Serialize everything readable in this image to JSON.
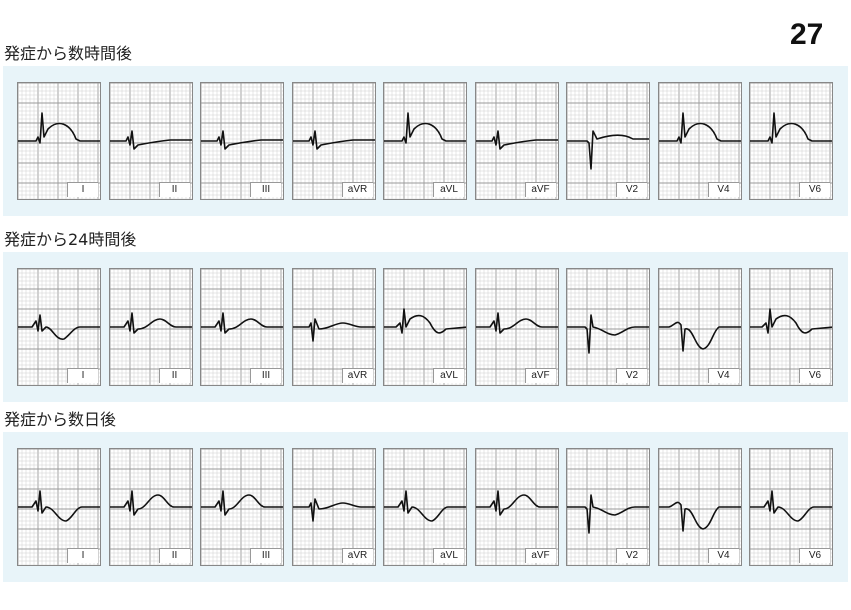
{
  "page_number": "27",
  "sections": [
    {
      "title": "発症から数時間後",
      "leads": [
        {
          "label": "I",
          "shape": "st_elev"
        },
        {
          "label": "II",
          "shape": "st_dep"
        },
        {
          "label": "III",
          "shape": "st_dep"
        },
        {
          "label": "aVR",
          "shape": "st_dep"
        },
        {
          "label": "aVL",
          "shape": "st_elev"
        },
        {
          "label": "aVF",
          "shape": "st_dep"
        },
        {
          "label": "V2",
          "shape": "qs_up"
        },
        {
          "label": "V4",
          "shape": "st_elev"
        },
        {
          "label": "V6",
          "shape": "st_elev"
        }
      ]
    },
    {
      "title": "発症から24時間後",
      "leads": [
        {
          "label": "I",
          "shape": "t_inv_small"
        },
        {
          "label": "II",
          "shape": "t_up_small"
        },
        {
          "label": "III",
          "shape": "t_up_small"
        },
        {
          "label": "aVR",
          "shape": "q_small_t"
        },
        {
          "label": "aVL",
          "shape": "st_elev_t_inv"
        },
        {
          "label": "aVF",
          "shape": "t_up_small"
        },
        {
          "label": "V2",
          "shape": "qs_t_inv"
        },
        {
          "label": "V4",
          "shape": "deep_t_inv"
        },
        {
          "label": "V6",
          "shape": "st_elev_t_inv"
        }
      ]
    },
    {
      "title": "発症から数日後",
      "leads": [
        {
          "label": "I",
          "shape": "t_inv"
        },
        {
          "label": "II",
          "shape": "t_up"
        },
        {
          "label": "III",
          "shape": "t_up"
        },
        {
          "label": "aVR",
          "shape": "q_small_t"
        },
        {
          "label": "aVL",
          "shape": "t_inv"
        },
        {
          "label": "aVF",
          "shape": "t_up"
        },
        {
          "label": "V2",
          "shape": "qs_t_inv"
        },
        {
          "label": "V4",
          "shape": "deep_t_inv"
        },
        {
          "label": "V6",
          "shape": "t_inv"
        }
      ]
    }
  ],
  "colors": {
    "strip_background": "#e8f4f9",
    "grid_minor": "#cfcfcf",
    "grid_major": "#9a9a9a",
    "trace": "#111111"
  }
}
